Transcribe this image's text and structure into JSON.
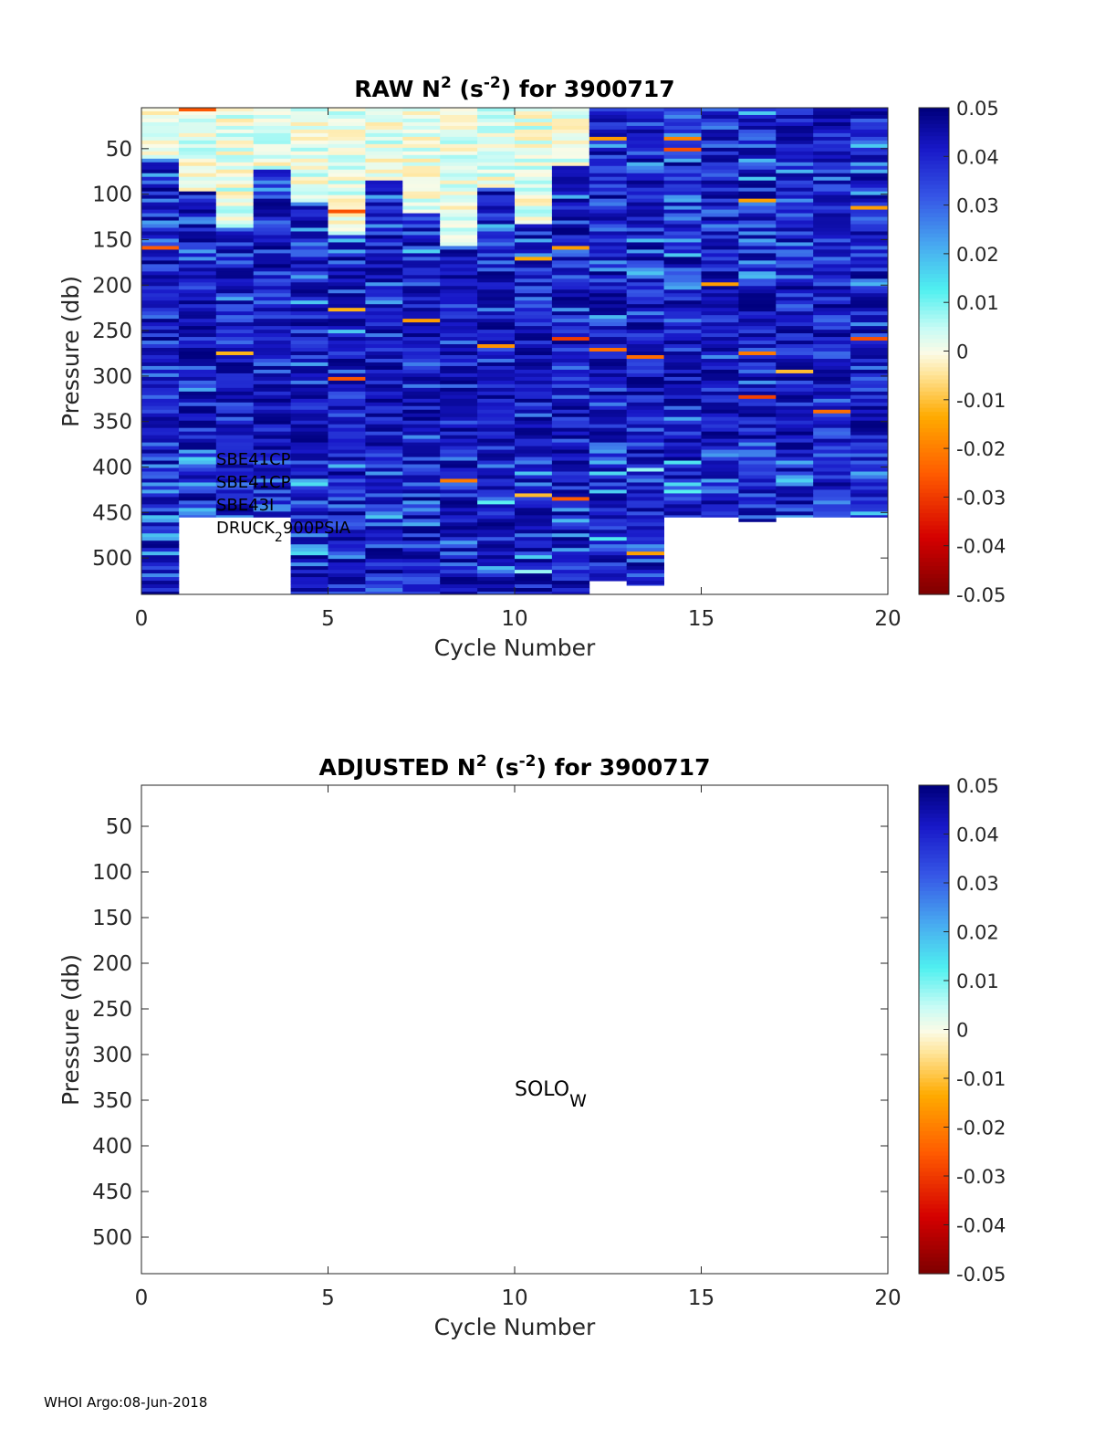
{
  "footer": "WHOI Argo:08-Jun-2018",
  "colormap": {
    "stops": [
      [
        0.0,
        "#7a0000"
      ],
      [
        0.12,
        "#d40000"
      ],
      [
        0.25,
        "#ff5a00"
      ],
      [
        0.37,
        "#ffab00"
      ],
      [
        0.46,
        "#ffe7a0"
      ],
      [
        0.5,
        "#fbfbe6"
      ],
      [
        0.55,
        "#c8fbf5"
      ],
      [
        0.63,
        "#4ff0f0"
      ],
      [
        0.72,
        "#48aaf0"
      ],
      [
        0.82,
        "#3656e6"
      ],
      [
        0.92,
        "#1818c8"
      ],
      [
        1.0,
        "#00007e"
      ]
    ]
  },
  "chart_data": [
    {
      "type": "heatmap",
      "title_main": "RAW N",
      "title_sup1": "2",
      "title_mid": " (s",
      "title_sup2": "-2",
      "title_end": ") for 3900717",
      "xlabel": "Cycle Number",
      "ylabel": "Pressure (db)",
      "xlim": [
        0,
        20
      ],
      "ylim": [
        5,
        540
      ],
      "y_reversed": true,
      "xticks": [
        "0",
        "5",
        "10",
        "15",
        "20"
      ],
      "yticks": [
        "50",
        "100",
        "150",
        "200",
        "250",
        "300",
        "350",
        "400",
        "450",
        "500"
      ],
      "colorbar_ticks": [
        "0.05",
        "0.04",
        "0.03",
        "0.02",
        "0.01",
        "0",
        "-0.01",
        "-0.02",
        "-0.03",
        "-0.04",
        "-0.05"
      ],
      "clim": [
        -0.05,
        0.05
      ],
      "cycles": [
        0,
        1,
        2,
        3,
        4,
        5,
        6,
        7,
        8,
        9,
        10,
        11,
        12,
        13,
        14,
        15,
        16,
        17,
        18,
        19
      ],
      "max_pressure": [
        540,
        455,
        455,
        455,
        540,
        540,
        540,
        540,
        540,
        540,
        540,
        540,
        525,
        530,
        455,
        455,
        460,
        455,
        455,
        455
      ],
      "surface_value_range": [
        -0.004,
        0.008
      ],
      "deep_value_range": [
        0.015,
        0.05
      ],
      "sensor_labels": [
        "SBE41CP",
        "SBE41CP",
        "SBE43I",
        "DRUCK",
        "2",
        "900PSIA"
      ]
    },
    {
      "type": "heatmap",
      "title_main": "ADJUSTED N",
      "title_sup1": "2",
      "title_mid": " (s",
      "title_sup2": "-2",
      "title_end": ") for 3900717",
      "xlabel": "Cycle Number",
      "ylabel": "Pressure (db)",
      "xlim": [
        0,
        20
      ],
      "ylim": [
        5,
        540
      ],
      "y_reversed": true,
      "xticks": [
        "0",
        "5",
        "10",
        "15",
        "20"
      ],
      "yticks": [
        "50",
        "100",
        "150",
        "200",
        "250",
        "300",
        "350",
        "400",
        "450",
        "500"
      ],
      "colorbar_ticks": [
        "0.05",
        "0.04",
        "0.03",
        "0.02",
        "0.01",
        "0",
        "-0.01",
        "-0.02",
        "-0.03",
        "-0.04",
        "-0.05"
      ],
      "clim": [
        -0.05,
        0.05
      ],
      "empty": true,
      "annotation_main": "SOLO",
      "annotation_sub": "W"
    }
  ]
}
